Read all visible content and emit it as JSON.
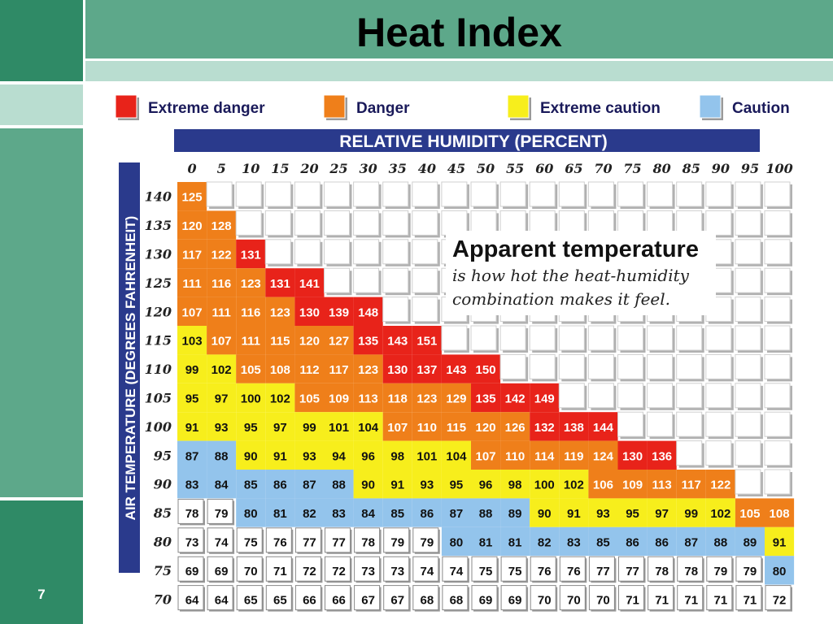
{
  "slide": {
    "title": "Heat Index",
    "page_number": "7",
    "colors": {
      "accent_dark": "#2f8a66",
      "accent_mid": "#5da88a",
      "accent_light": "#b9ddd0"
    }
  },
  "chart_data": {
    "type": "table",
    "title": "",
    "xlabel": "RELATIVE HUMIDITY (PERCENT)",
    "ylabel": "AIR TEMPERATURE (DEGREES FAHRENHEIT)",
    "annotation": {
      "heading": "Apparent temperature",
      "line1": "is how hot the heat-humidity",
      "line2": "combination makes it feel."
    },
    "legend": [
      {
        "label": "Extreme danger",
        "color": "#e8231a"
      },
      {
        "label": "Danger",
        "color": "#ef7f1a"
      },
      {
        "label": "Extreme caution",
        "color": "#f7ee1c"
      },
      {
        "label": "Caution",
        "color": "#93c4ec"
      }
    ],
    "humidity": [
      0,
      5,
      10,
      15,
      20,
      25,
      30,
      35,
      40,
      45,
      50,
      55,
      60,
      65,
      70,
      75,
      80,
      85,
      90,
      95,
      100
    ],
    "temperatures": [
      140,
      135,
      130,
      125,
      120,
      115,
      110,
      105,
      100,
      95,
      90,
      85,
      80,
      75,
      70
    ],
    "values": [
      [
        125
      ],
      [
        120,
        128
      ],
      [
        117,
        122,
        131
      ],
      [
        111,
        116,
        123,
        131,
        141
      ],
      [
        107,
        111,
        116,
        123,
        130,
        139,
        148
      ],
      [
        103,
        107,
        111,
        115,
        120,
        127,
        135,
        143,
        151
      ],
      [
        99,
        102,
        105,
        108,
        112,
        117,
        123,
        130,
        137,
        143,
        150
      ],
      [
        95,
        97,
        100,
        102,
        105,
        109,
        113,
        118,
        123,
        129,
        135,
        142,
        149
      ],
      [
        91,
        93,
        95,
        97,
        99,
        101,
        104,
        107,
        110,
        115,
        120,
        126,
        132,
        138,
        144
      ],
      [
        87,
        88,
        90,
        91,
        93,
        94,
        96,
        98,
        101,
        104,
        107,
        110,
        114,
        119,
        124,
        130,
        136
      ],
      [
        83,
        84,
        85,
        86,
        87,
        88,
        90,
        91,
        93,
        95,
        96,
        98,
        100,
        102,
        106,
        109,
        113,
        117,
        122
      ],
      [
        78,
        79,
        80,
        81,
        82,
        83,
        84,
        85,
        86,
        87,
        88,
        89,
        90,
        91,
        93,
        95,
        97,
        99,
        102,
        105,
        108
      ],
      [
        73,
        74,
        75,
        76,
        77,
        77,
        78,
        79,
        79,
        80,
        81,
        81,
        82,
        83,
        85,
        86,
        86,
        87,
        88,
        89,
        91
      ],
      [
        69,
        69,
        70,
        71,
        72,
        72,
        73,
        73,
        74,
        74,
        75,
        75,
        76,
        76,
        77,
        77,
        78,
        78,
        79,
        79,
        80
      ],
      [
        64,
        64,
        65,
        65,
        66,
        66,
        67,
        67,
        68,
        68,
        69,
        69,
        70,
        70,
        70,
        71,
        71,
        71,
        71,
        71,
        72
      ]
    ],
    "thresholds": {
      "extreme_danger": 130,
      "danger": 105,
      "extreme_caution": 90,
      "caution": 80
    }
  }
}
